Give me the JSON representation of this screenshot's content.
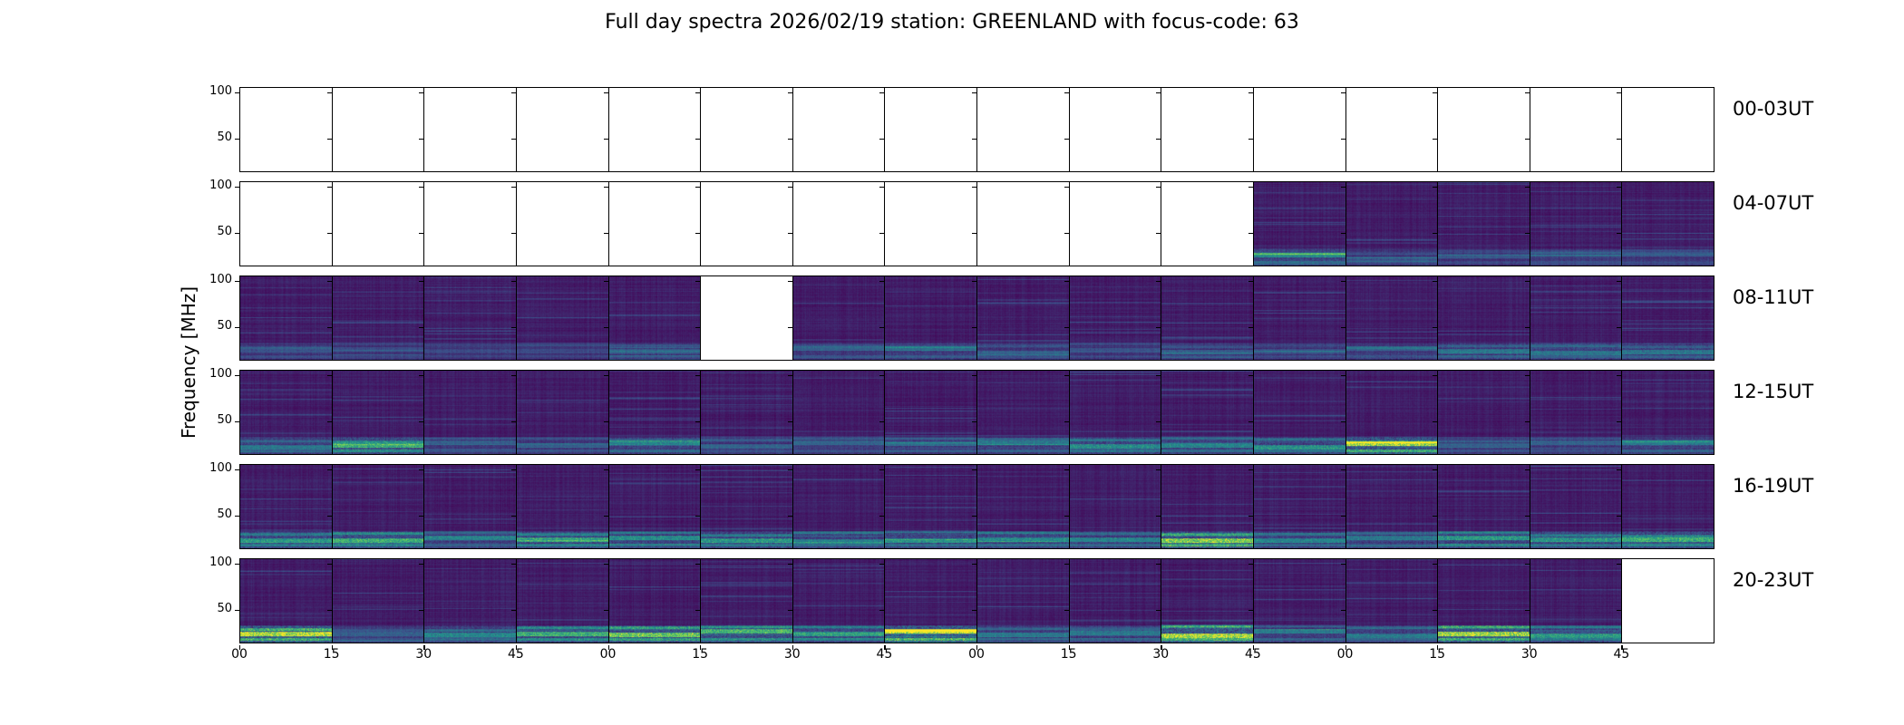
{
  "chart_data": {
    "type": "heatmap",
    "title": "Full day spectra 2026/02/19 station: GREENLAND with focus-code: 63",
    "ylabel": "Frequency [MHz]",
    "xlabel": "",
    "ylim": [
      12.5,
      105
    ],
    "yticks": [
      "100",
      "50"
    ],
    "xticks": [
      "00",
      "15",
      "30",
      "45",
      "00",
      "15",
      "30",
      "45",
      "00",
      "15",
      "30",
      "45",
      "00",
      "15",
      "30",
      "45"
    ],
    "row_labels": [
      "00-03UT",
      "04-07UT",
      "08-11UT",
      "12-15UT",
      "16-19UT",
      "20-23UT"
    ],
    "colormap": "viridis",
    "panel_minutes": 15,
    "panels_per_row": 16,
    "data_available": [
      [
        0,
        0,
        0,
        0,
        0,
        0,
        0,
        0,
        0,
        0,
        0,
        0,
        0,
        0,
        0,
        0
      ],
      [
        0,
        0,
        0,
        0,
        0,
        0,
        0,
        0,
        0,
        0,
        0,
        1,
        1,
        1,
        1,
        1
      ],
      [
        1,
        1,
        1,
        1,
        1,
        0,
        1,
        1,
        1,
        1,
        1,
        1,
        1,
        1,
        1,
        1
      ],
      [
        1,
        1,
        1,
        1,
        1,
        1,
        1,
        1,
        1,
        1,
        1,
        1,
        1,
        1,
        1,
        1
      ],
      [
        1,
        1,
        1,
        1,
        1,
        1,
        1,
        1,
        1,
        1,
        1,
        1,
        1,
        1,
        1,
        1
      ],
      [
        1,
        1,
        1,
        1,
        1,
        1,
        1,
        1,
        1,
        1,
        1,
        1,
        1,
        1,
        1,
        0
      ]
    ],
    "low_band_intensity": [
      [
        0,
        0,
        0,
        0,
        0,
        0,
        0,
        0,
        0,
        0,
        0,
        0,
        0,
        0,
        0,
        0
      ],
      [
        0,
        0,
        0,
        0,
        0,
        0,
        0,
        0,
        0,
        0,
        0,
        0.35,
        0.15,
        0.15,
        0.15,
        0.15
      ],
      [
        0.15,
        0.1,
        0.1,
        0.1,
        0.2,
        0,
        0.2,
        0.25,
        0.2,
        0.15,
        0.2,
        0.15,
        0.2,
        0.3,
        0.3,
        0.3
      ],
      [
        0.3,
        0.55,
        0.2,
        0.2,
        0.35,
        0.2,
        0.2,
        0.25,
        0.3,
        0.4,
        0.35,
        0.4,
        0.8,
        0.2,
        0.2,
        0.3
      ],
      [
        0.45,
        0.55,
        0.3,
        0.5,
        0.4,
        0.45,
        0.35,
        0.4,
        0.4,
        0.35,
        0.75,
        0.35,
        0.3,
        0.45,
        0.45,
        0.55
      ],
      [
        0.85,
        0.2,
        0.35,
        0.55,
        0.7,
        0.6,
        0.45,
        0.9,
        0.3,
        0.3,
        0.85,
        0.3,
        0.3,
        0.8,
        0.45,
        0
      ]
    ],
    "colors": {
      "viridis_low": "#440154",
      "viridis_high": "#fde725",
      "axis": "#000000"
    }
  }
}
